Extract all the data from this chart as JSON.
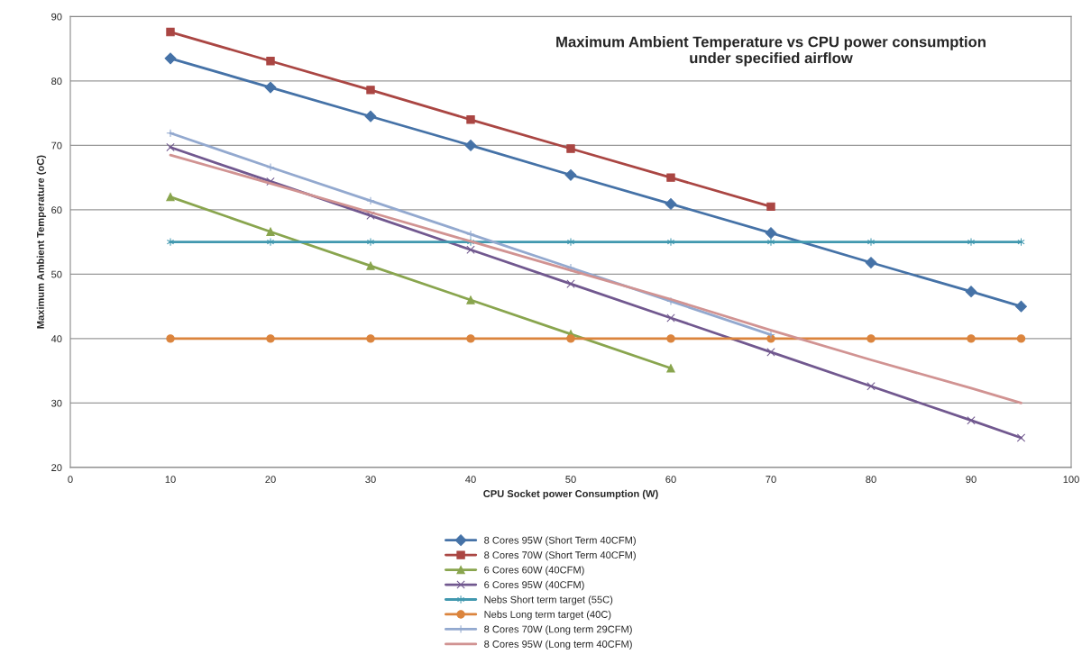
{
  "chart_data": {
    "type": "line",
    "title": "Maximum Ambient Temperature vs CPU power consumption\nunder specified airflow",
    "xlabel": "CPU Socket power Consumption (W)",
    "ylabel": "Maximum Ambient Temperature (oC)",
    "xlim": [
      0,
      100
    ],
    "xticks": [
      0,
      10,
      20,
      30,
      40,
      50,
      60,
      70,
      80,
      90,
      100
    ],
    "ylim": [
      20,
      90
    ],
    "yticks": [
      20,
      30,
      40,
      50,
      60,
      70,
      80,
      90
    ],
    "grid": "y",
    "legend": "bottom",
    "series": [
      {
        "name": "8 Cores 95W (Short Term 40CFM)",
        "color": "#4572a7",
        "marker": "diamond",
        "x": [
          10,
          20,
          30,
          40,
          50,
          60,
          70,
          80,
          90,
          95
        ],
        "values": [
          83.5,
          79,
          74.5,
          70,
          65.4,
          60.9,
          56.4,
          51.8,
          47.3,
          45
        ]
      },
      {
        "name": "8 Cores 70W (Short Term 40CFM)",
        "color": "#aa4643",
        "marker": "square",
        "x": [
          10,
          20,
          30,
          40,
          50,
          60,
          70
        ],
        "values": [
          87.6,
          83.1,
          78.6,
          74,
          69.5,
          65,
          60.5
        ]
      },
      {
        "name": "6 Cores 60W (40CFM)",
        "color": "#89a54e",
        "marker": "triangle",
        "x": [
          10,
          20,
          30,
          40,
          50,
          60
        ],
        "values": [
          62,
          56.6,
          51.3,
          46,
          40.7,
          35.4
        ]
      },
      {
        "name": "6 Cores 95W (40CFM)",
        "color": "#71588f",
        "marker": "cross",
        "x": [
          10,
          20,
          30,
          40,
          50,
          60,
          70,
          80,
          90,
          95
        ],
        "values": [
          69.7,
          64.4,
          59.1,
          53.8,
          48.5,
          43.2,
          37.9,
          32.6,
          27.3,
          24.6
        ]
      },
      {
        "name": "Nebs Short term target (55C)",
        "color": "#4198af",
        "marker": "cross",
        "x": [
          10,
          20,
          30,
          40,
          50,
          60,
          70,
          80,
          90,
          95
        ],
        "values": [
          55,
          55,
          55,
          55,
          55,
          55,
          55,
          55,
          55,
          55
        ]
      },
      {
        "name": "Nebs Long term target (40C)",
        "color": "#db843d",
        "marker": "circle",
        "x": [
          10,
          20,
          30,
          40,
          50,
          60,
          70,
          80,
          90,
          95
        ],
        "values": [
          40,
          40,
          40,
          40,
          40,
          40,
          40,
          40,
          40,
          40
        ]
      },
      {
        "name": "8 Cores 70W (Long term 29CFM)",
        "color": "#93a9cf",
        "marker": "plus",
        "x": [
          10,
          20,
          30,
          40,
          50,
          60,
          70
        ],
        "values": [
          71.9,
          66.6,
          61.4,
          56.2,
          51,
          45.8,
          40.6
        ]
      },
      {
        "name": "8 Cores 95W (Long term 40CFM)",
        "color": "#d19392",
        "marker": "none",
        "x": [
          10,
          20,
          30,
          40,
          50,
          60,
          70,
          80,
          90,
          95
        ],
        "values": [
          68.5,
          64.1,
          59.6,
          55.1,
          50.6,
          46.1,
          41.3,
          36.7,
          32.3,
          30
        ]
      }
    ]
  }
}
